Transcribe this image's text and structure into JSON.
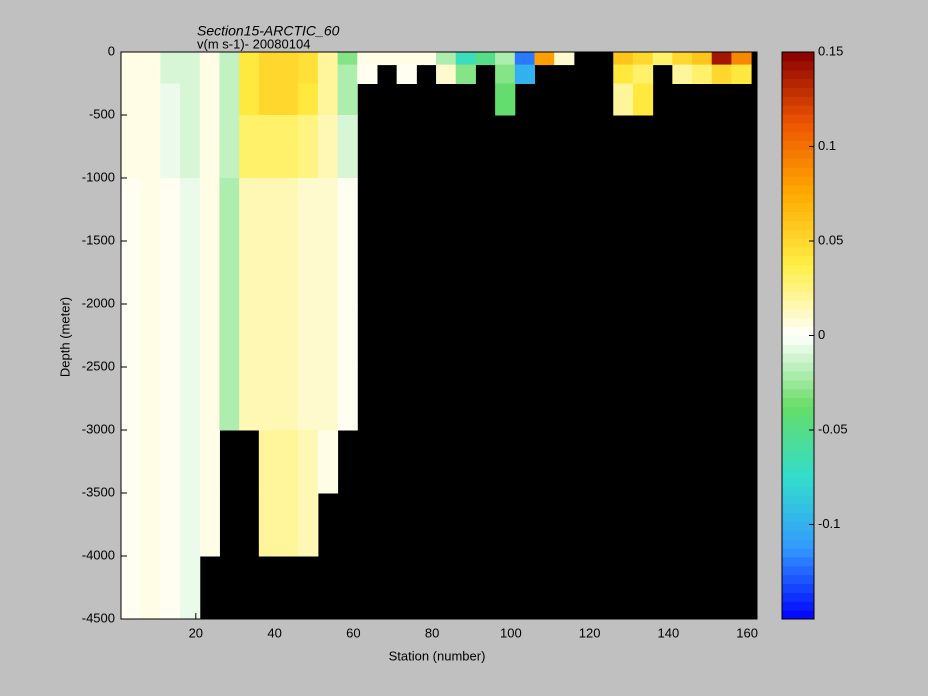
{
  "chart_data": {
    "type": "heatmap",
    "title": "Section15-ARCTIC_60",
    "subtitle": "v(m s-1)- 20080104",
    "xlabel": "Station (number)",
    "ylabel": "Depth (meter)",
    "xlim": [
      1,
      162.5
    ],
    "ylim": [
      -4500,
      0
    ],
    "xticks": [
      20,
      40,
      60,
      80,
      100,
      120,
      140,
      160
    ],
    "yticks": [
      0,
      -500,
      -1000,
      -1500,
      -2000,
      -2500,
      -3000,
      -3500,
      -4000,
      -4500
    ],
    "clim": [
      -0.15,
      0.15
    ],
    "cticks": [
      0.15,
      0.1,
      0.05,
      0,
      -0.05,
      -0.1
    ],
    "colormap": [
      "#0000ff",
      "#3399ff",
      "#33ddcc",
      "#66dd66",
      "#ffffff",
      "#ffee44",
      "#ffaa00",
      "#ee5500",
      "#880000"
    ],
    "missing_color": "#000000",
    "xbins": [
      1,
      6,
      11,
      16,
      21,
      26,
      31,
      36,
      41,
      46,
      51,
      56,
      61,
      66,
      71,
      76,
      81,
      86,
      91,
      96,
      101,
      106,
      111,
      116,
      121,
      126,
      131,
      136,
      141,
      146,
      151,
      156,
      161
    ],
    "ybins": [
      0,
      -100,
      -250,
      -500,
      -1000,
      -1500,
      -2000,
      -2500,
      -3000,
      -3500,
      -4000,
      -4500
    ],
    "z": [
      [
        0.005,
        0.005,
        -0.01,
        -0.01,
        0.005,
        -0.015,
        0.04,
        0.05,
        0.05,
        0.045,
        0.02,
        -0.03,
        0.005,
        0.005,
        0.005,
        0.005,
        -0.02,
        -0.07,
        -0.05,
        -0.02,
        -0.12,
        0.08,
        0.01,
        null,
        null,
        0.06,
        0.05,
        0.03,
        0.05,
        0.06,
        0.14,
        0.09
      ],
      [
        0.005,
        0.005,
        -0.01,
        -0.01,
        0.005,
        -0.015,
        0.04,
        0.05,
        0.05,
        0.045,
        0.02,
        -0.02,
        0.003,
        null,
        0.003,
        null,
        0.01,
        -0.03,
        null,
        -0.03,
        -0.1,
        null,
        null,
        null,
        null,
        0.04,
        0.03,
        null,
        0.02,
        0.03,
        0.05,
        0.04
      ],
      [
        0.005,
        0.005,
        -0.005,
        -0.01,
        0.005,
        -0.015,
        0.04,
        0.05,
        0.05,
        0.04,
        0.02,
        -0.02,
        null,
        null,
        null,
        null,
        null,
        null,
        null,
        -0.04,
        null,
        null,
        null,
        null,
        null,
        0.02,
        0.04,
        null,
        null,
        null,
        null,
        null
      ],
      [
        0.005,
        0.005,
        -0.005,
        -0.01,
        0.005,
        -0.015,
        0.03,
        0.03,
        0.03,
        0.025,
        0.015,
        -0.01,
        null,
        null,
        null,
        null,
        null,
        null,
        null,
        null,
        null,
        null,
        null,
        null,
        null,
        null,
        null,
        null,
        null,
        null,
        null,
        null
      ],
      [
        0.003,
        0.005,
        0.003,
        -0.005,
        0.005,
        -0.02,
        0.015,
        0.015,
        0.015,
        0.01,
        0.01,
        0.003,
        null,
        null,
        null,
        null,
        null,
        null,
        null,
        null,
        null,
        null,
        null,
        null,
        null,
        null,
        null,
        null,
        null,
        null,
        null,
        null
      ],
      [
        0.003,
        0.005,
        0.003,
        -0.005,
        0.005,
        -0.02,
        0.015,
        0.015,
        0.015,
        0.01,
        0.01,
        0.003,
        null,
        null,
        null,
        null,
        null,
        null,
        null,
        null,
        null,
        null,
        null,
        null,
        null,
        null,
        null,
        null,
        null,
        null,
        null,
        null
      ],
      [
        0.003,
        0.005,
        0.003,
        -0.005,
        0.005,
        -0.02,
        0.015,
        0.015,
        0.015,
        0.01,
        0.01,
        0.003,
        null,
        null,
        null,
        null,
        null,
        null,
        null,
        null,
        null,
        null,
        null,
        null,
        null,
        null,
        null,
        null,
        null,
        null,
        null,
        null
      ],
      [
        0.003,
        0.005,
        0.003,
        -0.005,
        0.005,
        -0.02,
        0.015,
        0.015,
        0.015,
        0.01,
        0.01,
        0.003,
        null,
        null,
        null,
        null,
        null,
        null,
        null,
        null,
        null,
        null,
        null,
        null,
        null,
        null,
        null,
        null,
        null,
        null,
        null,
        null
      ],
      [
        0.003,
        0.005,
        0.003,
        -0.005,
        0.005,
        null,
        null,
        0.02,
        0.02,
        0.015,
        0.005,
        null,
        null,
        null,
        null,
        null,
        null,
        null,
        null,
        null,
        null,
        null,
        null,
        null,
        null,
        null,
        null,
        null,
        null,
        null,
        null,
        null
      ],
      [
        0.003,
        0.005,
        0.003,
        -0.005,
        0.005,
        null,
        null,
        0.02,
        0.02,
        0.015,
        null,
        null,
        null,
        null,
        null,
        null,
        null,
        null,
        null,
        null,
        null,
        null,
        null,
        null,
        null,
        null,
        null,
        null,
        null,
        null,
        null,
        null
      ],
      [
        0.003,
        0.005,
        0.003,
        -0.005,
        null,
        null,
        null,
        null,
        null,
        null,
        null,
        null,
        null,
        null,
        null,
        null,
        null,
        null,
        null,
        null,
        null,
        null,
        null,
        null,
        null,
        null,
        null,
        null,
        null,
        null,
        null,
        null
      ]
    ]
  }
}
